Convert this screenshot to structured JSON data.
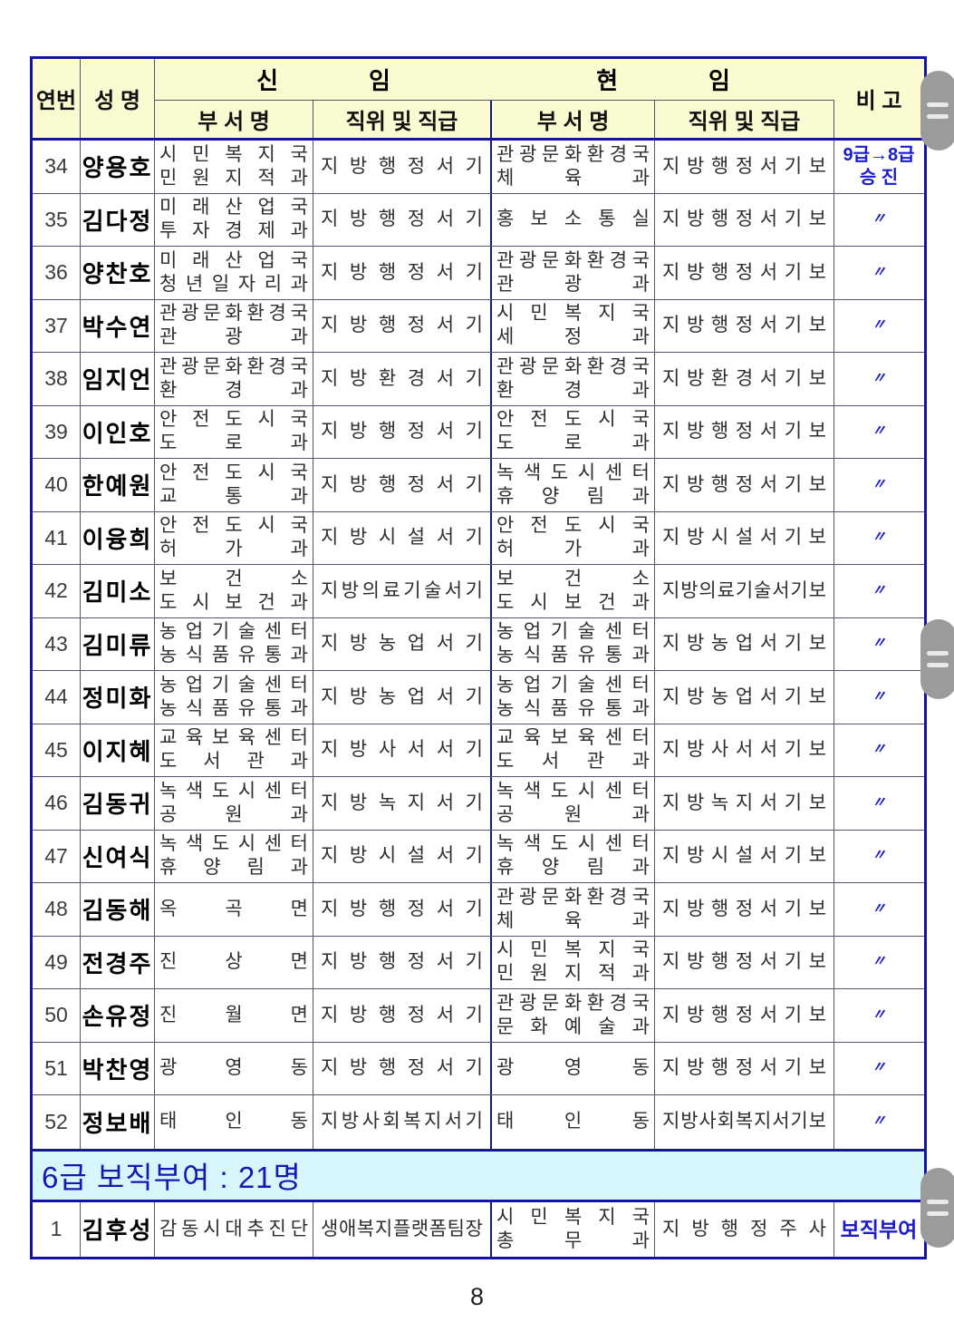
{
  "colors": {
    "navy_border": "#1414a0",
    "grid_line": "#55556e",
    "header_bg": "#fbfbd2",
    "section_bg": "#d6f6fb",
    "note_blue": "#1c1ccc",
    "section_blue": "#1717b4"
  },
  "table": {
    "header": {
      "serial": "연번",
      "name": "성 명",
      "new_group": {
        "left": "신",
        "right": "임"
      },
      "cur_group": {
        "left": "현",
        "right": "임"
      },
      "dept": "부 서 명",
      "position": "직위 및 직급",
      "note": "비 고"
    },
    "rows": [
      {
        "no": "34",
        "name": "양용호",
        "new_dept": [
          "시민복지국",
          "민원지적과"
        ],
        "new_pos": "지방행정서기",
        "cur_dept": [
          "관광문화환경국",
          "체육과"
        ],
        "cur_pos": "지방행정서기보",
        "note": [
          "9급→8급",
          "승 진"
        ]
      },
      {
        "no": "35",
        "name": "김다정",
        "new_dept": [
          "미래산업국",
          "투자경제과"
        ],
        "new_pos": "지방행정서기",
        "cur_dept": [
          "홍보소통실"
        ],
        "cur_pos": "지방행정서기보",
        "note": [
          "〃"
        ]
      },
      {
        "no": "36",
        "name": "양찬호",
        "new_dept": [
          "미래산업국",
          "청년일자리과"
        ],
        "new_pos": "지방행정서기",
        "cur_dept": [
          "관광문화환경국",
          "관광과"
        ],
        "cur_pos": "지방행정서기보",
        "note": [
          "〃"
        ]
      },
      {
        "no": "37",
        "name": "박수연",
        "new_dept": [
          "관광문화환경국",
          "관광과"
        ],
        "new_pos": "지방행정서기",
        "cur_dept": [
          "시민복지국",
          "세정과"
        ],
        "cur_pos": "지방행정서기보",
        "note": [
          "〃"
        ]
      },
      {
        "no": "38",
        "name": "임지언",
        "new_dept": [
          "관광문화환경국",
          "환경과"
        ],
        "new_pos": "지방환경서기",
        "cur_dept": [
          "관광문화환경국",
          "환경과"
        ],
        "cur_pos": "지방환경서기보",
        "note": [
          "〃"
        ]
      },
      {
        "no": "39",
        "name": "이인호",
        "new_dept": [
          "안전도시국",
          "도로과"
        ],
        "new_pos": "지방행정서기",
        "cur_dept": [
          "안전도시국",
          "도로과"
        ],
        "cur_pos": "지방행정서기보",
        "note": [
          "〃"
        ]
      },
      {
        "no": "40",
        "name": "한예원",
        "new_dept": [
          "안전도시국",
          "교통과"
        ],
        "new_pos": "지방행정서기",
        "cur_dept": [
          "녹색도시센터",
          "휴양림과"
        ],
        "cur_pos": "지방행정서기보",
        "note": [
          "〃"
        ]
      },
      {
        "no": "41",
        "name": "이융희",
        "new_dept": [
          "안전도시국",
          "허가과"
        ],
        "new_pos": "지방시설서기",
        "cur_dept": [
          "안전도시국",
          "허가과"
        ],
        "cur_pos": "지방시설서기보",
        "note": [
          "〃"
        ]
      },
      {
        "no": "42",
        "name": "김미소",
        "new_dept": [
          "보건소",
          "도시보건과"
        ],
        "new_pos": "지방의료기술서기",
        "cur_dept": [
          "보건소",
          "도시보건과"
        ],
        "cur_pos": "지방의료기술서기보",
        "note": [
          "〃"
        ]
      },
      {
        "no": "43",
        "name": "김미류",
        "new_dept": [
          "농업기술센터",
          "농식품유통과"
        ],
        "new_pos": "지방농업서기",
        "cur_dept": [
          "농업기술센터",
          "농식품유통과"
        ],
        "cur_pos": "지방농업서기보",
        "note": [
          "〃"
        ]
      },
      {
        "no": "44",
        "name": "정미화",
        "new_dept": [
          "농업기술센터",
          "농식품유통과"
        ],
        "new_pos": "지방농업서기",
        "cur_dept": [
          "농업기술센터",
          "농식품유통과"
        ],
        "cur_pos": "지방농업서기보",
        "note": [
          "〃"
        ]
      },
      {
        "no": "45",
        "name": "이지혜",
        "new_dept": [
          "교육보육센터",
          "도서관과"
        ],
        "new_pos": "지방사서서기",
        "cur_dept": [
          "교육보육센터",
          "도서관과"
        ],
        "cur_pos": "지방사서서기보",
        "note": [
          "〃"
        ]
      },
      {
        "no": "46",
        "name": "김동귀",
        "new_dept": [
          "녹색도시센터",
          "공원과"
        ],
        "new_pos": "지방녹지서기",
        "cur_dept": [
          "녹색도시센터",
          "공원과"
        ],
        "cur_pos": "지방녹지서기보",
        "note": [
          "〃"
        ]
      },
      {
        "no": "47",
        "name": "신여식",
        "new_dept": [
          "녹색도시센터",
          "휴양림과"
        ],
        "new_pos": "지방시설서기",
        "cur_dept": [
          "녹색도시센터",
          "휴양림과"
        ],
        "cur_pos": "지방시설서기보",
        "note": [
          "〃"
        ]
      },
      {
        "no": "48",
        "name": "김동해",
        "new_dept": [
          "옥곡면"
        ],
        "new_pos": "지방행정서기",
        "cur_dept": [
          "관광문화환경국",
          "체육과"
        ],
        "cur_pos": "지방행정서기보",
        "note": [
          "〃"
        ]
      },
      {
        "no": "49",
        "name": "전경주",
        "new_dept": [
          "진상면"
        ],
        "new_pos": "지방행정서기",
        "cur_dept": [
          "시민복지국",
          "민원지적과"
        ],
        "cur_pos": "지방행정서기보",
        "note": [
          "〃"
        ]
      },
      {
        "no": "50",
        "name": "손유정",
        "new_dept": [
          "진월면"
        ],
        "new_pos": "지방행정서기",
        "cur_dept": [
          "관광문화환경국",
          "문화예술과"
        ],
        "cur_pos": "지방행정서기보",
        "note": [
          "〃"
        ]
      },
      {
        "no": "51",
        "name": "박찬영",
        "new_dept": [
          "광영동"
        ],
        "new_pos": "지방행정서기",
        "cur_dept": [
          "광영동"
        ],
        "cur_pos": "지방행정서기보",
        "note": [
          "〃"
        ]
      },
      {
        "no": "52",
        "name": "정보배",
        "new_dept": [
          "태인동"
        ],
        "new_pos": "지방사회복지서기",
        "cur_dept": [
          "태인동"
        ],
        "cur_pos": "지방사회복지서기보",
        "note": [
          "〃"
        ]
      }
    ],
    "section_label": "6급 보직부여 : 21명",
    "bonus_rows": [
      {
        "no": "1",
        "name": "김후성",
        "new_dept": [
          "감동시대추진단"
        ],
        "new_pos": "생애복지플랫폼팀장",
        "cur_dept": [
          "시민복지국",
          "총무과"
        ],
        "cur_pos": "지방행정주사",
        "note": [
          "보직부여"
        ]
      }
    ]
  },
  "page_number": "8"
}
